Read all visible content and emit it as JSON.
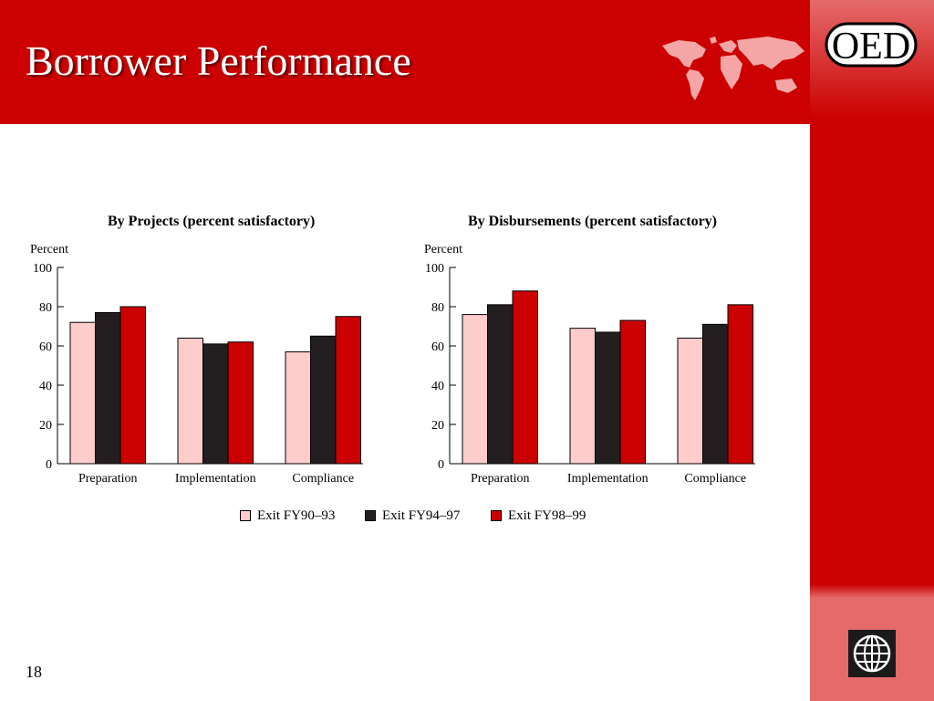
{
  "slide": {
    "title": "Borrower Performance",
    "page_number": "18",
    "logo_text": "OED"
  },
  "legend": [
    {
      "label": "Exit FY90–93",
      "color": "#ffcccc"
    },
    {
      "label": "Exit FY94–97",
      "color": "#231f20"
    },
    {
      "label": "Exit FY98–99",
      "color": "#cc0000"
    }
  ],
  "chart_data": [
    {
      "type": "bar",
      "title": "By Projects (percent satisfactory)",
      "ylabel": "Percent",
      "ylim": [
        0,
        100
      ],
      "yticks": [
        0,
        20,
        40,
        60,
        80,
        100
      ],
      "categories": [
        "Preparation",
        "Implementation",
        "Compliance"
      ],
      "series": [
        {
          "name": "Exit FY90–93",
          "values": [
            72,
            64,
            57
          ]
        },
        {
          "name": "Exit FY94–97",
          "values": [
            77,
            61,
            65
          ]
        },
        {
          "name": "Exit FY98–99",
          "values": [
            80,
            62,
            75
          ]
        }
      ]
    },
    {
      "type": "bar",
      "title": "By Disbursements (percent satisfactory)",
      "ylabel": "Percent",
      "ylim": [
        0,
        100
      ],
      "yticks": [
        0,
        20,
        40,
        60,
        80,
        100
      ],
      "categories": [
        "Preparation",
        "Implementation",
        "Compliance"
      ],
      "series": [
        {
          "name": "Exit FY90–93",
          "values": [
            76,
            69,
            64
          ]
        },
        {
          "name": "Exit FY94–97",
          "values": [
            81,
            67,
            71
          ]
        },
        {
          "name": "Exit FY98–99",
          "values": [
            88,
            73,
            81
          ]
        }
      ]
    }
  ]
}
